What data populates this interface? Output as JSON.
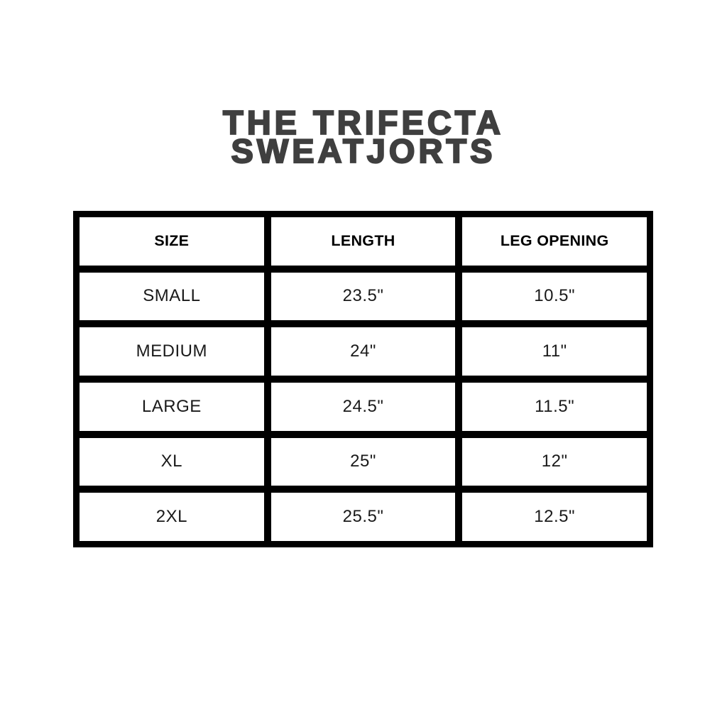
{
  "title": {
    "line1": "THE TRIFECTA",
    "line2": "SWEATJORTS"
  },
  "colors": {
    "background": "#ffffff",
    "title_text": "#3f3f3f",
    "table_border": "#000000",
    "cell_background": "#ffffff",
    "cell_text": "#1a1a1a"
  },
  "chart_data": {
    "type": "table",
    "title": "THE TRIFECTA SWEATJORTS",
    "columns": [
      "SIZE",
      "LENGTH",
      "LEG OPENING"
    ],
    "rows": [
      [
        "SMALL",
        "23.5\"",
        "10.5\""
      ],
      [
        "MEDIUM",
        "24\"",
        "11\""
      ],
      [
        "LARGE",
        "24.5\"",
        "11.5\""
      ],
      [
        "XL",
        "25\"",
        "12\""
      ],
      [
        "2XL",
        "25.5\"",
        "12.5\""
      ]
    ]
  }
}
